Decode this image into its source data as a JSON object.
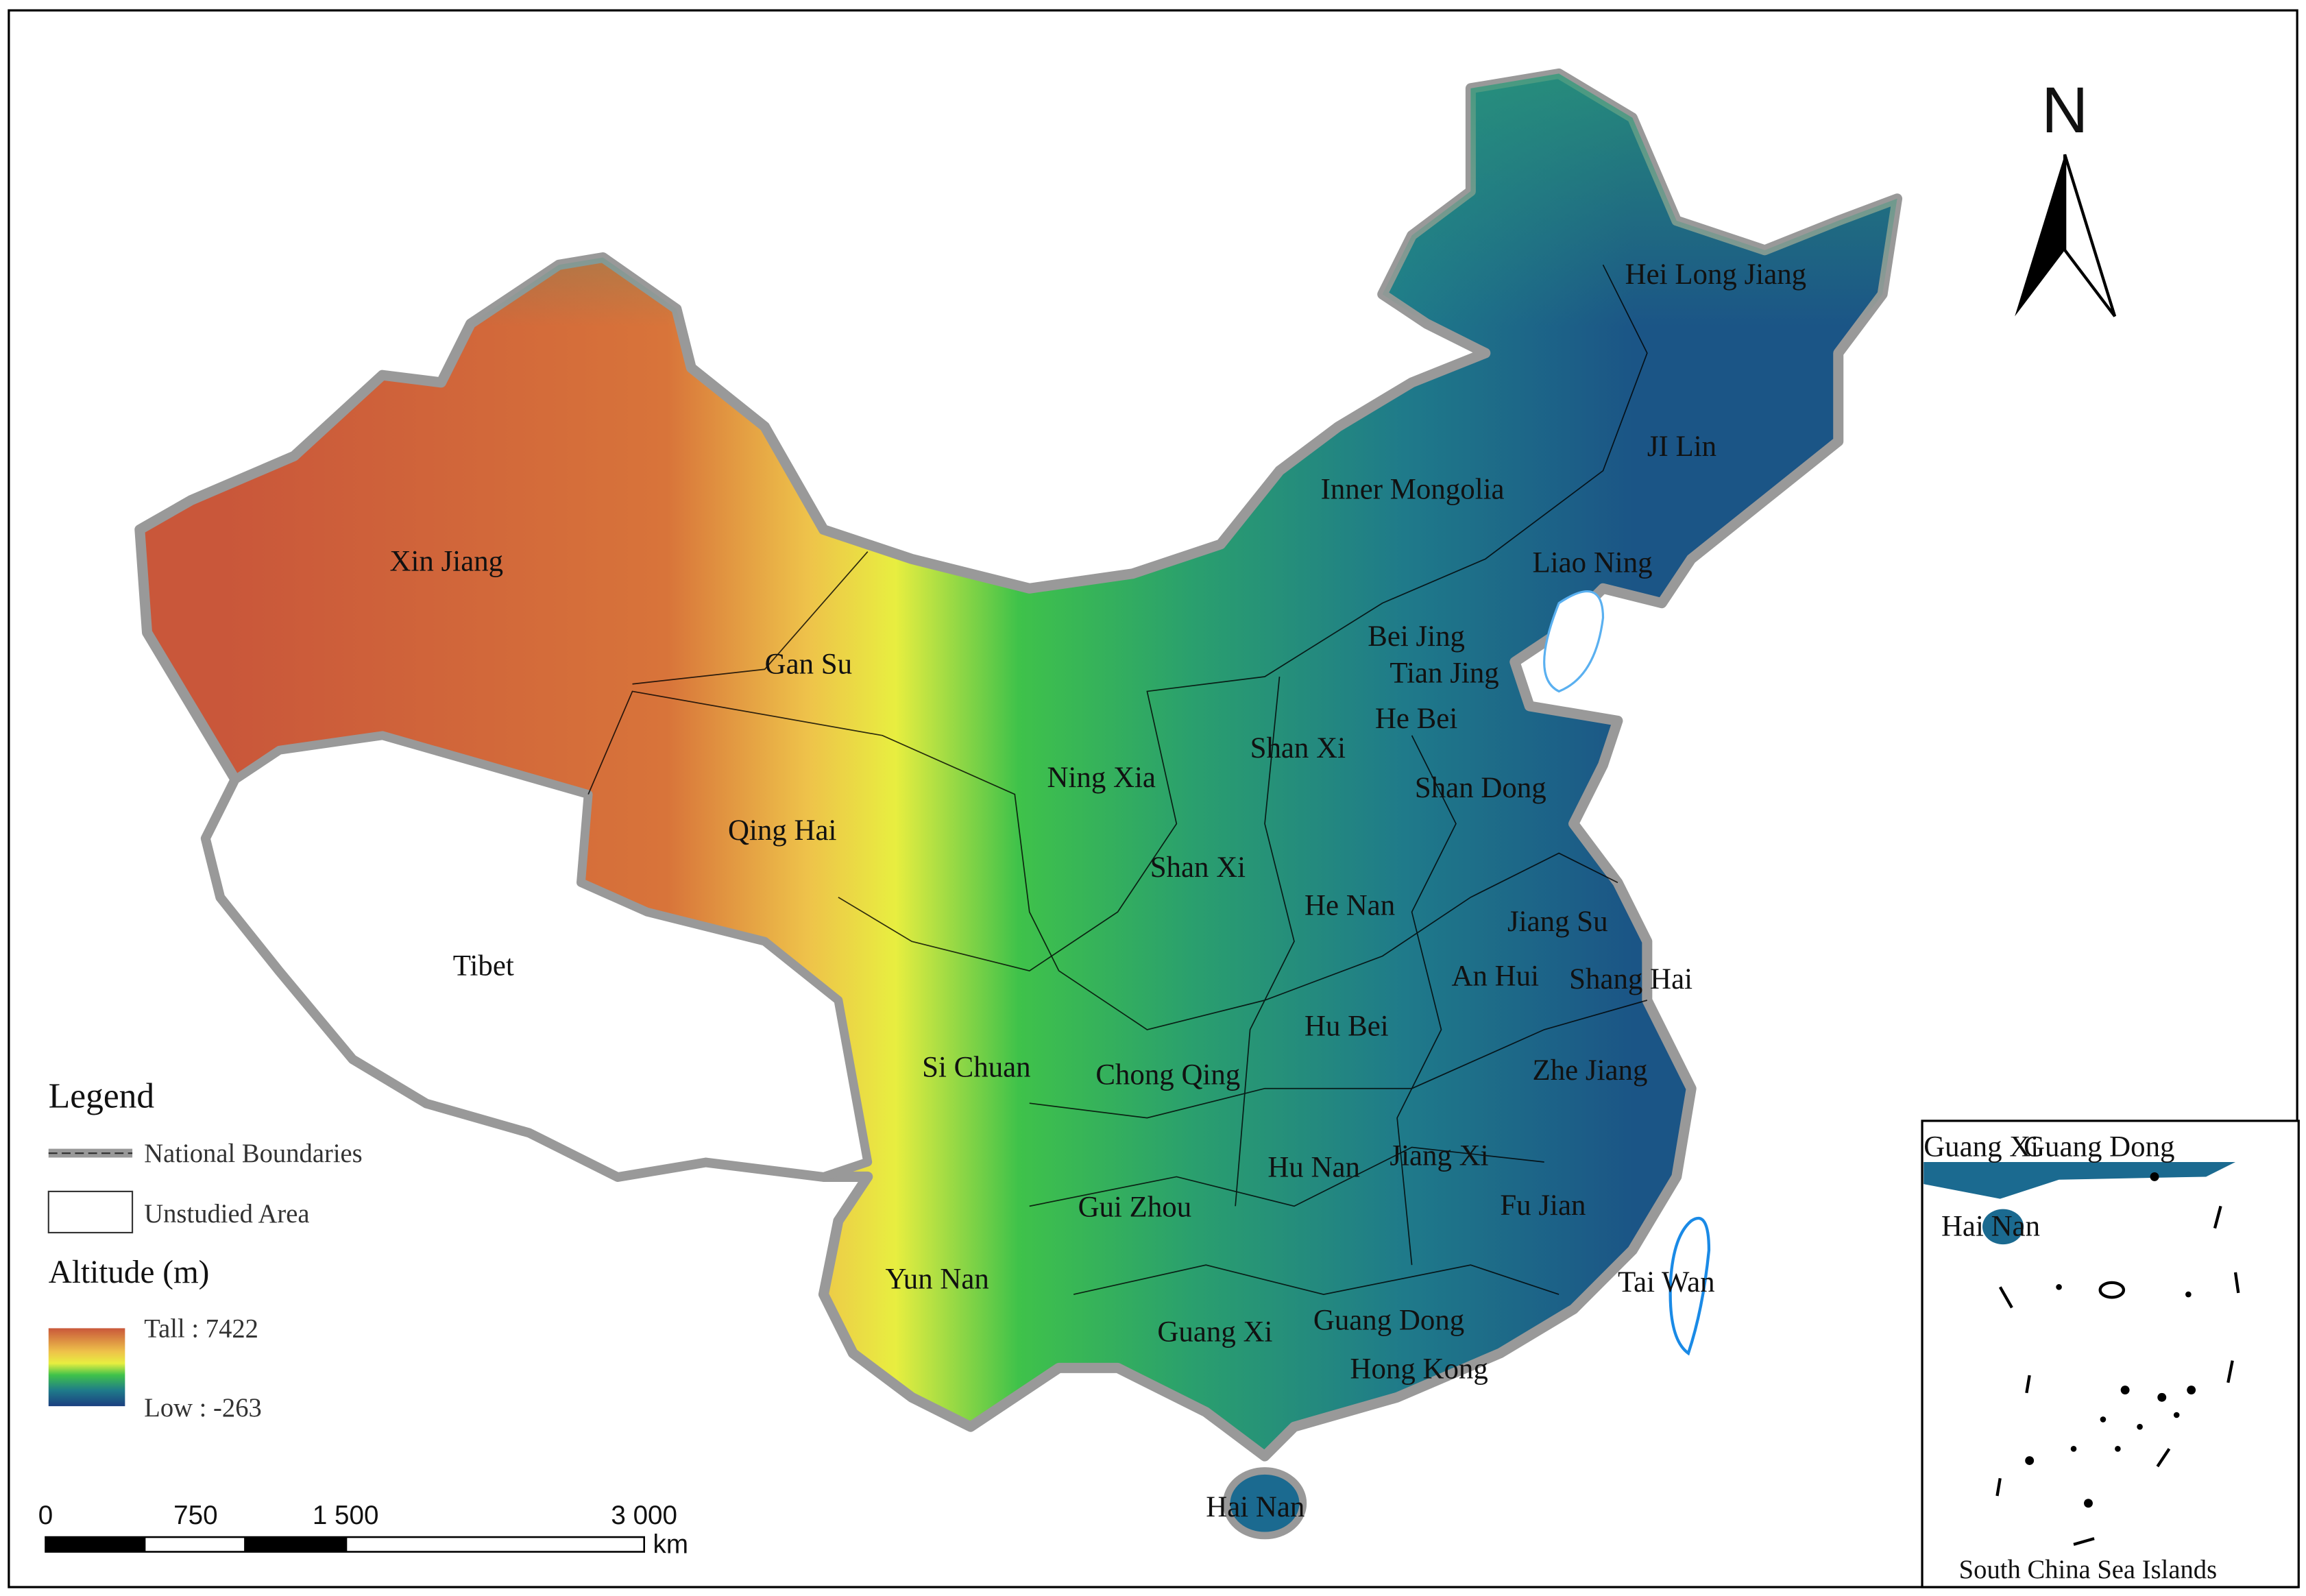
{
  "map": {
    "north": "N",
    "provinces": [
      "Xin Jiang",
      "Gan Su",
      "Qing Hai",
      "Tibet",
      "Ning Xia",
      "Shan Xi",
      "Shan Xi",
      "Inner Mongolia",
      "Hei Long Jiang",
      "JI Lin",
      "Liao Ning",
      "Bei Jing",
      "Tian Jing",
      "He Bei",
      "Shan Dong",
      "He Nan",
      "Jiang Su",
      "An Hui",
      "Shang Hai",
      "Hu Bei",
      "Si Chuan",
      "Chong Qing",
      "Zhe Jiang",
      "Hu Nan",
      "Jiang Xi",
      "Fu Jian",
      "Gui Zhou",
      "Yun Nan",
      "Tai Wan",
      "Guang Xi",
      "Guang Dong",
      "Hong Kong",
      "Hai Nan"
    ],
    "legend": {
      "title": "Legend",
      "national_boundaries": "National Boundaries",
      "unstudied_area": "Unstudied Area",
      "altitude_title": "Altitude (m)",
      "tall": "Tall : 7422",
      "low": "Low : -263"
    },
    "scale_bar": {
      "labels": [
        "0",
        "750",
        "1 500",
        "3 000"
      ],
      "unit": "km"
    },
    "inset": {
      "labels": [
        "Guang Xi",
        "Guang Dong",
        "Hai Nan"
      ],
      "title": "South China Sea Islands"
    }
  }
}
